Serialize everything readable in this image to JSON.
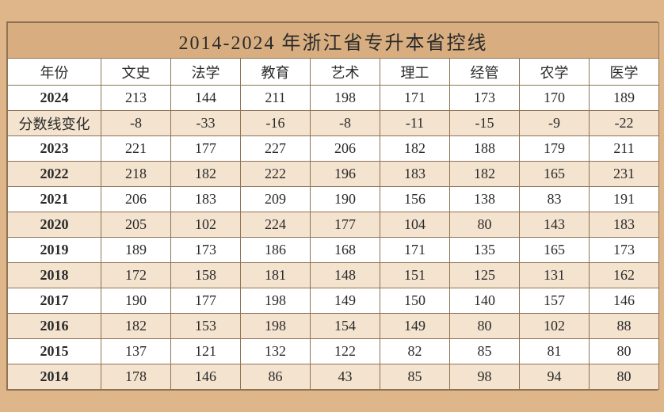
{
  "title": "2014-2024 年浙江省专升本省控线",
  "columns": [
    "年份",
    "文史",
    "法学",
    "教育",
    "艺术",
    "理工",
    "经管",
    "农学",
    "医学"
  ],
  "rows": [
    {
      "label": "2024",
      "bold": true,
      "values": [
        "213",
        "144",
        "211",
        "198",
        "171",
        "173",
        "170",
        "189"
      ]
    },
    {
      "label": "分数线变化",
      "bold": false,
      "values": [
        "-8",
        "-33",
        "-16",
        "-8",
        "-11",
        "-15",
        "-9",
        "-22"
      ]
    },
    {
      "label": "2023",
      "bold": true,
      "values": [
        "221",
        "177",
        "227",
        "206",
        "182",
        "188",
        "179",
        "211"
      ]
    },
    {
      "label": "2022",
      "bold": true,
      "values": [
        "218",
        "182",
        "222",
        "196",
        "183",
        "182",
        "165",
        "231"
      ]
    },
    {
      "label": "2021",
      "bold": true,
      "values": [
        "206",
        "183",
        "209",
        "190",
        "156",
        "138",
        "83",
        "191"
      ]
    },
    {
      "label": "2020",
      "bold": true,
      "values": [
        "205",
        "102",
        "224",
        "177",
        "104",
        "80",
        "143",
        "183"
      ]
    },
    {
      "label": "2019",
      "bold": true,
      "values": [
        "189",
        "173",
        "186",
        "168",
        "171",
        "135",
        "165",
        "173"
      ]
    },
    {
      "label": "2018",
      "bold": true,
      "values": [
        "172",
        "158",
        "181",
        "148",
        "151",
        "125",
        "131",
        "162"
      ]
    },
    {
      "label": "2017",
      "bold": true,
      "values": [
        "190",
        "177",
        "198",
        "149",
        "150",
        "140",
        "157",
        "146"
      ]
    },
    {
      "label": "2016",
      "bold": true,
      "values": [
        "182",
        "153",
        "198",
        "154",
        "149",
        "80",
        "102",
        "88"
      ]
    },
    {
      "label": "2015",
      "bold": true,
      "values": [
        "137",
        "121",
        "132",
        "122",
        "82",
        "85",
        "81",
        "80"
      ]
    },
    {
      "label": "2014",
      "bold": true,
      "values": [
        "178",
        "146",
        "86",
        "43",
        "85",
        "98",
        "94",
        "80"
      ]
    }
  ],
  "styling": {
    "page_background": "#deb68a",
    "title_background": "#d8ae80",
    "row_even_background": "#f3e3cf",
    "row_odd_background": "#ffffff",
    "border_color": "#8f7355",
    "text_color": "#2a2a2a",
    "title_fontsize": 24,
    "header_fontsize": 18,
    "cell_fontsize": 18,
    "col_year_width": 118,
    "col_data_width": 88
  }
}
